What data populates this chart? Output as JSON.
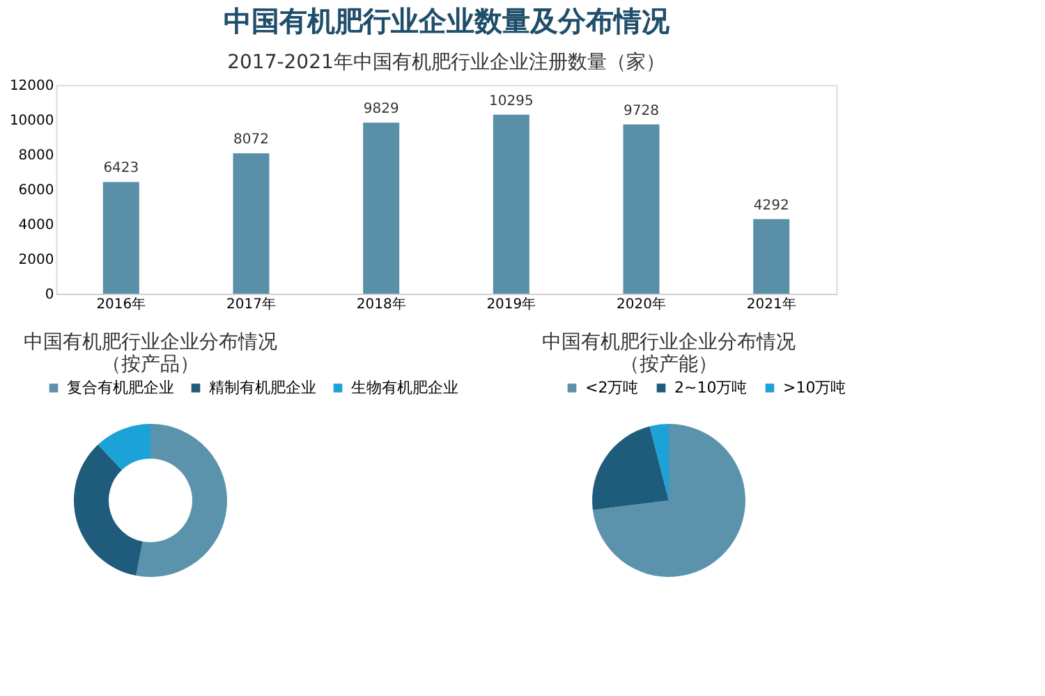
{
  "chart_data": [
    {
      "type": "bar",
      "title": "中国有机肥行业企业数量及分布情况",
      "subtitle": "2017-2021年中国有机肥行业企业注册数量（家）",
      "categories": [
        "2016年",
        "2017年",
        "2018年",
        "2019年",
        "2020年",
        "2021年"
      ],
      "values": [
        6423,
        8072,
        9829,
        10295,
        9728,
        4292
      ],
      "color": "#5a8fa8",
      "ylim": [
        0,
        12000
      ],
      "yticks": [
        0,
        2000,
        4000,
        6000,
        8000,
        10000,
        12000
      ],
      "grid": false,
      "data_labels": true
    },
    {
      "type": "donut",
      "title": "中国有机肥行业企业分布情况",
      "subtitle": "（按产品）",
      "categories": [
        "复合有机肥企业",
        "精制有机肥企业",
        "生物有机肥企业"
      ],
      "values": [
        53,
        35,
        12
      ],
      "colors": [
        "#5b93ad",
        "#1f5b7a",
        "#1ba3d8"
      ],
      "legend": "top"
    },
    {
      "type": "pie",
      "title": "中国有机肥行业企业分布情况",
      "subtitle": "（按产能）",
      "categories": [
        "<2万吨",
        "2~10万吨",
        ">10万吨"
      ],
      "values": [
        73,
        23,
        4
      ],
      "colors": [
        "#5b93ad",
        "#1f5b7a",
        "#1ba3d8"
      ],
      "legend": "top"
    }
  ]
}
